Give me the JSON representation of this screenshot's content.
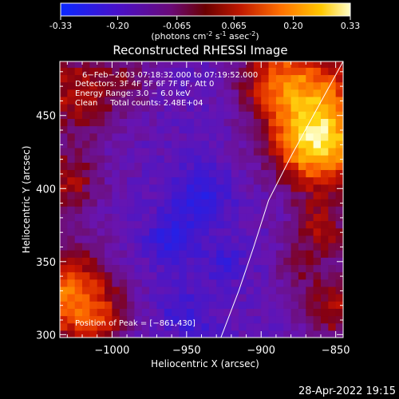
{
  "colorbar": {
    "ticks": [
      "-0.33",
      "-0.20",
      "-0.065",
      "0.065",
      "0.20",
      "0.33"
    ],
    "tick_values": [
      -0.33,
      -0.2,
      -0.065,
      0.065,
      0.2,
      0.33
    ],
    "range": [
      -0.33,
      0.33
    ],
    "units_prefix": "(photons cm",
    "units_exp1": "-2",
    "units_mid": " s",
    "units_exp2": "-1",
    "units_mid2": " asec",
    "units_exp3": "-2",
    "units_suffix": ")"
  },
  "chart_data": {
    "type": "heatmap",
    "title": "Reconstructed RHESSI Image",
    "xlabel": "Heliocentric X (arcsec)",
    "ylabel": "Heliocentric Y (arcsec)",
    "xlim": [
      -1035,
      -845
    ],
    "ylim": [
      298,
      487
    ],
    "x_ticks": [
      -1000,
      -950,
      -900,
      -850
    ],
    "x_tick_labels": [
      "−1000",
      "−950",
      "−900",
      "−850"
    ],
    "y_ticks": [
      300,
      350,
      400,
      450
    ],
    "y_tick_labels": [
      "300",
      "350",
      "400",
      "450"
    ],
    "annotations": [
      "6−Feb−2003 07:18:32.000 to 07:19:52.000",
      "Detectors: 3F 4F 5F 6F 7F 8F, Att 0",
      "Energy Range: 3.0 − 6.0 keV",
      "Clean     Total counts: 2.48E+04"
    ],
    "peak_label": "Position of Peak = [−861,430]",
    "peak": [
      -861,
      430
    ],
    "limb_points": [
      [
        -927,
        298
      ],
      [
        -915,
        330
      ],
      [
        -905,
        360
      ],
      [
        -895,
        392
      ],
      [
        -880,
        422
      ],
      [
        -865,
        450
      ],
      [
        -845,
        487
      ]
    ],
    "hot_spots": [
      {
        "x": -861,
        "y": 430,
        "sigma": 22,
        "amp": 0.36
      },
      {
        "x": -870,
        "y": 470,
        "sigma": 25,
        "amp": 0.24
      },
      {
        "x": -895,
        "y": 478,
        "sigma": 16,
        "amp": 0.1
      },
      {
        "x": -1035,
        "y": 328,
        "sigma": 24,
        "amp": 0.28
      },
      {
        "x": -1008,
        "y": 312,
        "sigma": 14,
        "amp": 0.12
      },
      {
        "x": -1030,
        "y": 405,
        "sigma": 16,
        "amp": 0.16
      },
      {
        "x": -1025,
        "y": 465,
        "sigma": 22,
        "amp": 0.18
      },
      {
        "x": -990,
        "y": 475,
        "sigma": 14,
        "amp": 0.08
      },
      {
        "x": -848,
        "y": 320,
        "sigma": 18,
        "amp": 0.18
      },
      {
        "x": -860,
        "y": 372,
        "sigma": 14,
        "amp": 0.16
      },
      {
        "x": -878,
        "y": 345,
        "sigma": 10,
        "amp": 0.08
      }
    ],
    "cold_spots": [
      {
        "x": -940,
        "y": 395,
        "sigma": 14,
        "amp": -0.12
      },
      {
        "x": -960,
        "y": 365,
        "sigma": 12,
        "amp": -0.12
      },
      {
        "x": -925,
        "y": 350,
        "sigma": 10,
        "amp": -0.08
      },
      {
        "x": -955,
        "y": 320,
        "sigma": 12,
        "amp": -0.07
      },
      {
        "x": -940,
        "y": 300,
        "sigma": 10,
        "amp": -0.06
      }
    ]
  },
  "footer": {
    "timestamp": "28-Apr-2022 19:15"
  }
}
